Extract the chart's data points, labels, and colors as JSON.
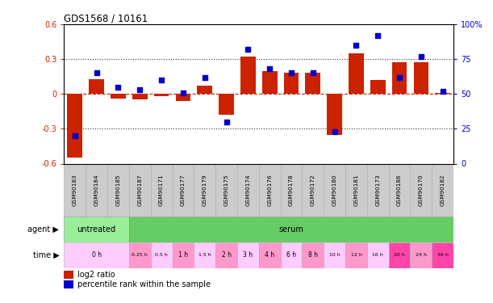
{
  "title": "GDS1568 / 10161",
  "samples": [
    "GSM90183",
    "GSM90184",
    "GSM90185",
    "GSM90187",
    "GSM90171",
    "GSM90177",
    "GSM90179",
    "GSM90175",
    "GSM90174",
    "GSM90176",
    "GSM90178",
    "GSM90172",
    "GSM90180",
    "GSM90181",
    "GSM90173",
    "GSM90186",
    "GSM90170",
    "GSM90182"
  ],
  "log2_ratio": [
    -0.55,
    0.13,
    -0.04,
    -0.05,
    -0.02,
    -0.06,
    0.07,
    -0.18,
    0.32,
    0.2,
    0.18,
    0.18,
    -0.35,
    0.35,
    0.12,
    0.27,
    0.27,
    0.01
  ],
  "percentile": [
    20,
    65,
    55,
    53,
    60,
    51,
    62,
    30,
    82,
    68,
    65,
    65,
    23,
    85,
    92,
    62,
    77,
    52
  ],
  "ylim_left": [
    -0.6,
    0.6
  ],
  "ylim_right": [
    0,
    100
  ],
  "yticks_left": [
    -0.6,
    -0.3,
    0.0,
    0.3,
    0.6
  ],
  "yticks_right": [
    0,
    25,
    50,
    75,
    100
  ],
  "ytick_labels_left": [
    "-0.6",
    "-0.3",
    "0",
    "0.3",
    "0.6"
  ],
  "ytick_labels_right": [
    "0",
    "25",
    "50",
    "75",
    "100%"
  ],
  "hline_dotted": [
    0.3,
    -0.3
  ],
  "hline_dashed": 0.0,
  "bar_color": "#cc2200",
  "dot_color": "#0000cc",
  "bar_width": 0.7,
  "dot_size": 25,
  "background_color": "#ffffff",
  "left_axis_color": "#cc2200",
  "right_axis_color": "#0000cc",
  "sample_bg_color": "#cccccc",
  "sample_border_color": "#aaaaaa",
  "agent_untreated_color": "#99ee99",
  "agent_serum_color": "#66cc66",
  "untreated_ncols": 3,
  "time_data": [
    [
      0,
      3,
      "0 h",
      "#ffccff"
    ],
    [
      3,
      4,
      "0.25 h",
      "#ff99cc"
    ],
    [
      4,
      5,
      "0.5 h",
      "#ffccff"
    ],
    [
      5,
      6,
      "1 h",
      "#ff99cc"
    ],
    [
      6,
      7,
      "1.5 h",
      "#ffccff"
    ],
    [
      7,
      8,
      "2 h",
      "#ff99cc"
    ],
    [
      8,
      9,
      "3 h",
      "#ffccff"
    ],
    [
      9,
      10,
      "4 h",
      "#ff99cc"
    ],
    [
      10,
      11,
      "6 h",
      "#ffccff"
    ],
    [
      11,
      12,
      "8 h",
      "#ff99cc"
    ],
    [
      12,
      13,
      "10 h",
      "#ffccff"
    ],
    [
      13,
      14,
      "12 h",
      "#ff99cc"
    ],
    [
      14,
      15,
      "16 h",
      "#ffccff"
    ],
    [
      15,
      16,
      "20 h",
      "#ff44aa"
    ],
    [
      16,
      17,
      "24 h",
      "#ff99cc"
    ],
    [
      17,
      18,
      "36 h",
      "#ff44aa"
    ]
  ],
  "legend_red_label": "log2 ratio",
  "legend_blue_label": "percentile rank within the sample"
}
